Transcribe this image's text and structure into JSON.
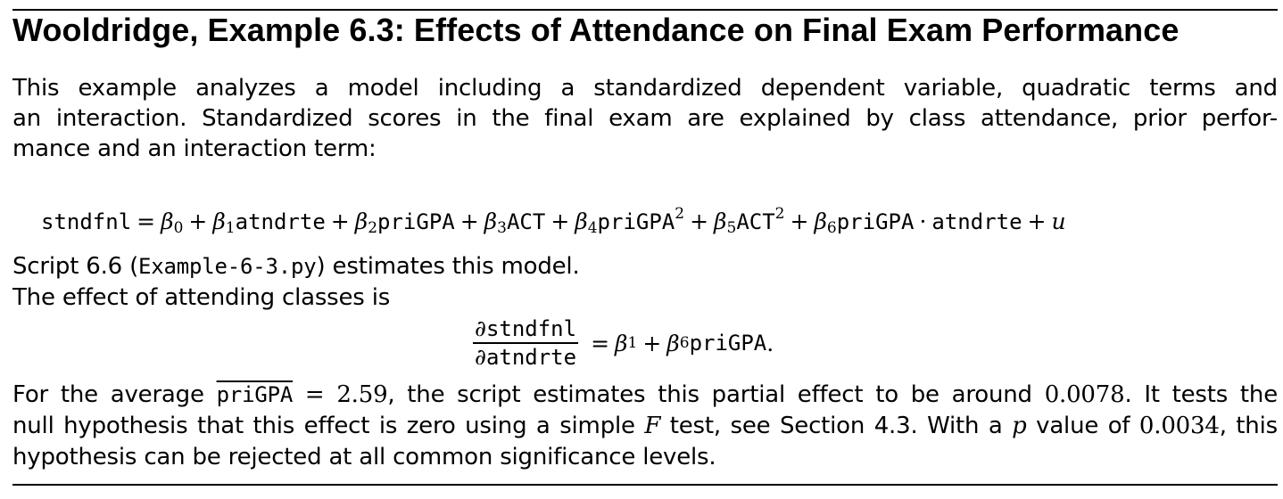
{
  "title": "Wooldridge, Example 6.3: Effects of Attendance on Final Exam Performance",
  "intro": {
    "line1": "This example analyzes a model including a standardized dependent variable, quadratic terms and",
    "line2": "an interaction. Standardized scores in the final exam are explained by class attendance, prior perfor-",
    "line3": "mance and an interaction term:"
  },
  "equation": {
    "lhs": "stndfnl",
    "equals": "=",
    "beta0": "β",
    "sub0": "0",
    "plus": "+",
    "beta1": "β",
    "sub1": "1",
    "var1": "atndrte",
    "beta2": "β",
    "sub2": "2",
    "var2": "priGPA",
    "beta3": "β",
    "sub3": "3",
    "var3": "ACT",
    "beta4": "β",
    "sub4": "4",
    "var4": "priGPA",
    "sup4": "2",
    "beta5": "β",
    "sub5": "5",
    "var5": "ACT",
    "sup5": "2",
    "beta6": "β",
    "sub6": "6",
    "var6a": "priGPA",
    "dot": "·",
    "var6b": "atndrte",
    "error": "u"
  },
  "script_line": {
    "pre": "Script 6.6 (",
    "file": "Example-6-3.py",
    "post": ") estimates this model."
  },
  "effect_line": "The effect of attending classes is",
  "partial_effect": {
    "partial": "∂",
    "numerator": "stndfnl",
    "denominator": "atndrte",
    "equals": "=",
    "beta": "β",
    "sub1": "1",
    "plus": "+",
    "beta6": "β",
    "sub6": "6",
    "var": "priGPA",
    "period": "."
  },
  "conclusion": {
    "l1_pre": "For the average",
    "l1_var": "priGPA",
    "l1_eq": "= 2.59",
    "l1_mid": ", the script estimates this partial effect to be around",
    "l1_val": "0.0078",
    "l1_post": ". It tests the",
    "l2_pre": "null hypothesis that this effect is zero using a simple",
    "l2_f": "F",
    "l2_mid": "test, see Section 4.3. With a",
    "l2_p": "p",
    "l2_mid2": "value of",
    "l2_val": "0.0034",
    "l2_post": ", this",
    "l3": "hypothesis can be rejected at all common significance levels."
  }
}
